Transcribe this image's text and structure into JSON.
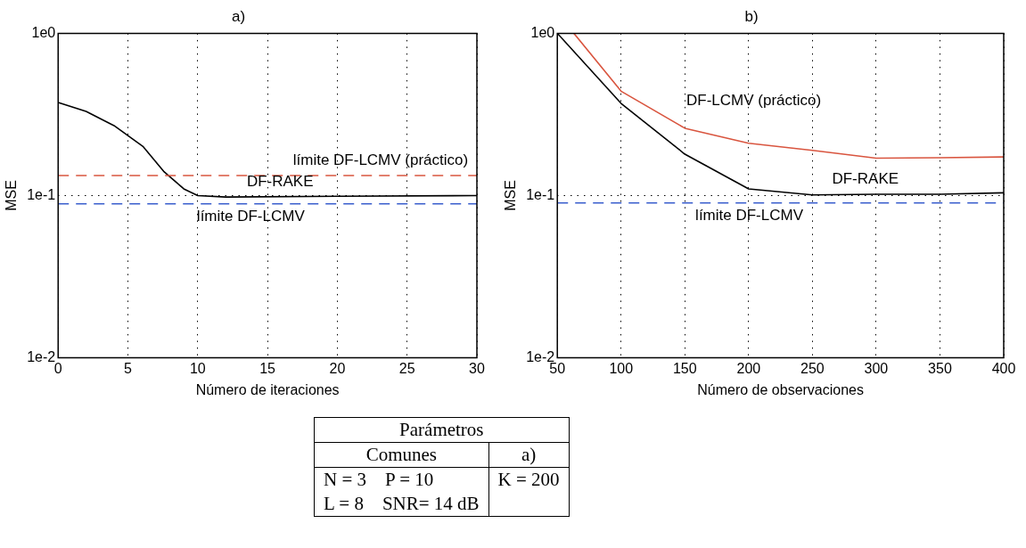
{
  "chart_data": [
    {
      "type": "line",
      "title": "a)",
      "xlabel": "Número de iteraciones",
      "ylabel": "MSE",
      "log": "y",
      "grid": true,
      "legend": false,
      "marker": "none",
      "line_style": "solid",
      "xlim": [
        0,
        30
      ],
      "xticks": [
        0,
        5,
        10,
        15,
        20,
        25,
        30
      ],
      "ylim": [
        0.01,
        1
      ],
      "yticks": [
        {
          "value": 0.01,
          "label": "1e-2"
        },
        {
          "value": 0.1,
          "label": "1e-1"
        },
        {
          "value": 1,
          "label": "1e0"
        }
      ],
      "series": [
        {
          "name": "DF-RAKE",
          "color": "#000000",
          "x": [
            0,
            2,
            4,
            6.1,
            7.6,
            9,
            10,
            12,
            20,
            30
          ],
          "values": [
            0.375,
            0.33,
            0.27,
            0.2,
            0.14,
            0.11,
            0.1,
            0.098,
            0.099,
            0.1
          ]
        }
      ],
      "ref_lines": [
        {
          "axis": "y",
          "value": 0.133,
          "label": "límite DF-LCMV (práctico)",
          "color": "#d9553f",
          "line_style": "dashed"
        },
        {
          "axis": "y",
          "value": 0.089,
          "label": "límite DF-LCMV",
          "color": "#3a5fcd",
          "line_style": "dashed"
        }
      ]
    },
    {
      "type": "line",
      "title": "b)",
      "xlabel": "Número de observaciones",
      "ylabel": "MSE",
      "log": "y",
      "grid": true,
      "legend": false,
      "marker": "none",
      "line_style": "solid",
      "xlim": [
        50,
        400
      ],
      "xticks": [
        50,
        100,
        150,
        200,
        250,
        300,
        350,
        400
      ],
      "ylim": [
        0.01,
        1
      ],
      "yticks": [
        {
          "value": 0.01,
          "label": "1e-2"
        },
        {
          "value": 0.1,
          "label": "1e-1"
        },
        {
          "value": 1,
          "label": "1e0"
        }
      ],
      "series": [
        {
          "name": "DF-LCMV (práctico)",
          "color": "#d9553f",
          "x": [
            63,
            100,
            150,
            200,
            250,
            300,
            350,
            400
          ],
          "values": [
            1,
            0.44,
            0.26,
            0.21,
            0.19,
            0.17,
            0.171,
            0.173
          ]
        },
        {
          "name": "DF-RAKE",
          "color": "#000000",
          "x": [
            50,
            100,
            150,
            200,
            250,
            300,
            350,
            400
          ],
          "values": [
            1,
            0.37,
            0.18,
            0.11,
            0.101,
            0.102,
            0.102,
            0.104
          ]
        }
      ],
      "ref_lines": [
        {
          "axis": "y",
          "value": 0.09,
          "label": "límite DF-LCMV",
          "color": "#3a5fcd",
          "line_style": "dashed"
        }
      ]
    },
    {
      "type": "other",
      "title": "Parámetros",
      "annotations": [
        "Comunes",
        "a)",
        "N = 3    P = 10",
        "L = 8    SNR= 14 dB",
        "K = 200"
      ]
    }
  ]
}
